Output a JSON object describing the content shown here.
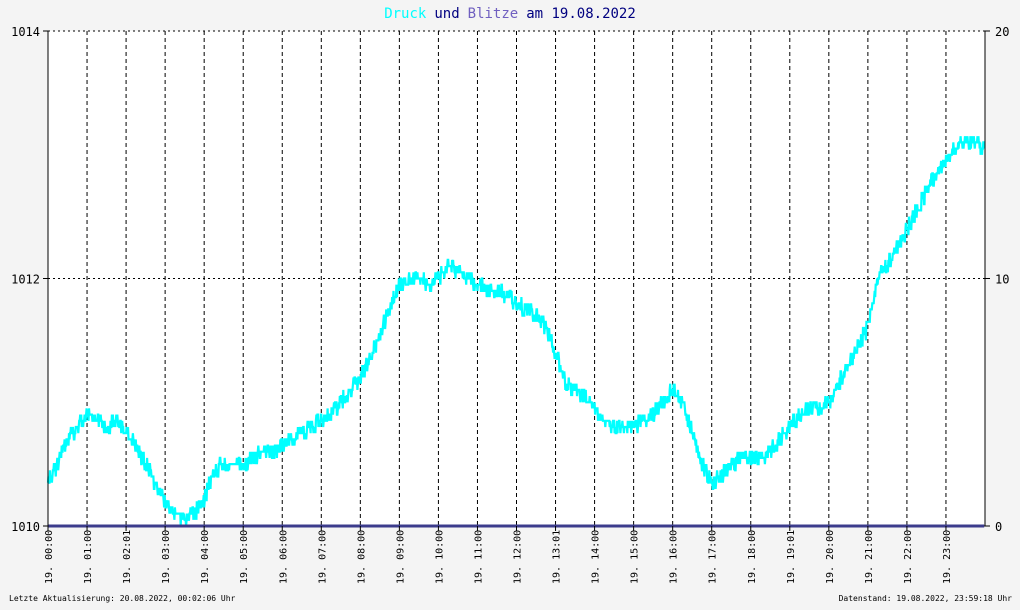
{
  "title": {
    "word1": "Druck",
    "word2": "und",
    "word3": "Blitze",
    "word4": "am 19.08.2022",
    "color1": "#00ffff",
    "color3": "#7060c0",
    "color_text": "#000080"
  },
  "footer": {
    "left": "Letzte Aktualisierung: 20.08.2022, 00:02:06 Uhr",
    "right": "Datenstand: 19.08.2022, 23:59:18 Uhr"
  },
  "chart_data": {
    "type": "line",
    "title": "Druck und Blitze am 19.08.2022",
    "x_tick_labels": [
      "19. 00:00",
      "19. 01:00",
      "19. 02:01",
      "19. 03:00",
      "19. 04:00",
      "19. 05:00",
      "19. 06:00",
      "19. 07:00",
      "19. 08:00",
      "19. 09:00",
      "19. 10:00",
      "19. 11:00",
      "19. 12:00",
      "19. 13:01",
      "19. 14:00",
      "19. 15:00",
      "19. 16:00",
      "19. 17:00",
      "19. 18:00",
      "19. 19:01",
      "19. 20:00",
      "19. 21:00",
      "19. 22:00",
      "19. 23:00"
    ],
    "x_hours": [
      0,
      1,
      2,
      3,
      4,
      5,
      6,
      7,
      8,
      9,
      10,
      11,
      12,
      13,
      14,
      15,
      16,
      17,
      18,
      19,
      20,
      21,
      22,
      23
    ],
    "xlim": [
      0,
      24
    ],
    "y_left": {
      "ylim": [
        1010,
        1014
      ],
      "ticks": [
        "1010",
        "1012",
        "1014"
      ]
    },
    "y_right": {
      "ylim": [
        0,
        20
      ],
      "ticks": [
        "0",
        "10",
        "20"
      ]
    },
    "grid": true,
    "series": [
      {
        "name": "Druck",
        "axis": "left",
        "color": "#00ffff",
        "x": [
          0,
          0.25,
          0.5,
          0.75,
          1,
          1.25,
          1.5,
          1.75,
          2,
          2.25,
          2.5,
          2.75,
          3,
          3.25,
          3.5,
          3.75,
          4,
          4.25,
          4.5,
          4.75,
          5,
          5.25,
          5.5,
          5.75,
          6,
          6.25,
          6.5,
          6.75,
          7,
          7.25,
          7.5,
          7.75,
          8,
          8.25,
          8.5,
          8.75,
          9,
          9.25,
          9.5,
          9.75,
          10,
          10.25,
          10.5,
          10.75,
          11,
          11.25,
          11.5,
          11.75,
          12,
          12.25,
          12.5,
          12.75,
          13,
          13.25,
          13.5,
          13.75,
          14,
          14.25,
          14.5,
          14.75,
          15,
          15.25,
          15.5,
          15.75,
          16,
          16.25,
          16.5,
          16.75,
          17,
          17.25,
          17.5,
          17.75,
          18,
          18.25,
          18.5,
          18.75,
          19,
          19.25,
          19.5,
          19.75,
          20,
          20.25,
          20.5,
          20.75,
          21,
          21.25,
          21.5,
          21.75,
          22,
          22.25,
          22.5,
          22.75,
          23,
          23.25,
          23.5,
          23.75,
          23.98
        ],
        "y": [
          1010.35,
          1010.5,
          1010.7,
          1010.8,
          1010.9,
          1010.85,
          1010.8,
          1010.85,
          1010.75,
          1010.65,
          1010.5,
          1010.35,
          1010.2,
          1010.1,
          1010.05,
          1010.1,
          1010.2,
          1010.45,
          1010.5,
          1010.5,
          1010.5,
          1010.55,
          1010.6,
          1010.6,
          1010.65,
          1010.7,
          1010.75,
          1010.8,
          1010.85,
          1010.9,
          1011.0,
          1011.1,
          1011.2,
          1011.35,
          1011.55,
          1011.75,
          1011.95,
          1012.0,
          1012.0,
          1011.95,
          1012.0,
          1012.1,
          1012.05,
          1012.0,
          1011.95,
          1011.9,
          1011.9,
          1011.85,
          1011.8,
          1011.75,
          1011.7,
          1011.6,
          1011.4,
          1011.15,
          1011.1,
          1011.05,
          1010.95,
          1010.85,
          1010.8,
          1010.8,
          1010.8,
          1010.85,
          1010.9,
          1011.0,
          1011.1,
          1011.0,
          1010.75,
          1010.5,
          1010.35,
          1010.4,
          1010.5,
          1010.55,
          1010.55,
          1010.55,
          1010.6,
          1010.7,
          1010.8,
          1010.9,
          1010.95,
          1010.95,
          1011.0,
          1011.15,
          1011.3,
          1011.45,
          1011.6,
          1012.0,
          1012.1,
          1012.25,
          1012.4,
          1012.55,
          1012.7,
          1012.85,
          1012.95,
          1013.05,
          1013.1,
          1013.1,
          1013.05
        ]
      },
      {
        "name": "Blitze",
        "axis": "right",
        "color": "#3c3c8c",
        "x": [
          0,
          23.98
        ],
        "y": [
          0,
          0
        ]
      }
    ]
  }
}
